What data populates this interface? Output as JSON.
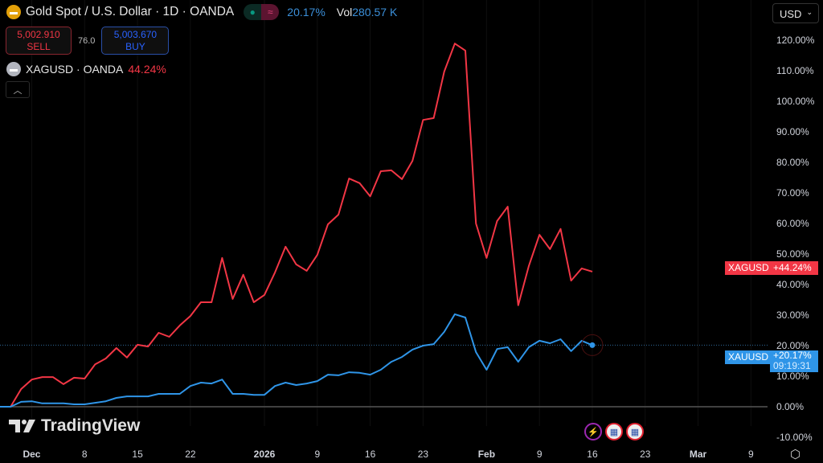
{
  "header": {
    "title": "Gold Spot / U.S. Dollar · 1D · OANDA",
    "change": "20.17%",
    "vol_label": "Vol",
    "vol_value": "280.57 K",
    "status_dot_color": "#089981",
    "wave_icon": "≈"
  },
  "trade": {
    "sell_price": "5,002.910",
    "sell_label": "SELL",
    "spread": "76.0",
    "buy_price": "5,003.670",
    "buy_label": "BUY"
  },
  "compare": {
    "label": "XAGUSD · OANDA",
    "change": "44.24%"
  },
  "currency": "USD",
  "brand": "TradingView",
  "colors": {
    "xauusd": "#2f95e8",
    "xagusd": "#f23645",
    "gold": "#e3a008",
    "silver": "#b2b5be"
  },
  "chart_data": {
    "type": "line",
    "ylim": [
      -10,
      120
    ],
    "yticks": [
      "-10.00%",
      "0.00%",
      "10.00%",
      "20.00%",
      "30.00%",
      "40.00%",
      "50.00%",
      "60.00%",
      "70.00%",
      "80.00%",
      "90.00%",
      "100.00%",
      "110.00%",
      "120.00%"
    ],
    "x_ticks": [
      {
        "label": "Dec",
        "bar": 3
      },
      {
        "label": "8",
        "bar": 8
      },
      {
        "label": "15",
        "bar": 13
      },
      {
        "label": "22",
        "bar": 18
      },
      {
        "label": "2026",
        "bar": 25
      },
      {
        "label": "9",
        "bar": 30
      },
      {
        "label": "16",
        "bar": 35
      },
      {
        "label": "23",
        "bar": 40
      },
      {
        "label": "Feb",
        "bar": 46
      },
      {
        "label": "9",
        "bar": 51
      },
      {
        "label": "16",
        "bar": 56
      },
      {
        "label": "23",
        "bar": 61
      },
      {
        "label": "Mar",
        "bar": 66
      },
      {
        "label": "9",
        "bar": 71
      }
    ],
    "series": [
      {
        "name": "XAGUSD",
        "tag_value": "+44.24%",
        "values": [
          0,
          0,
          5.8,
          8.9,
          9.7,
          9.7,
          7.4,
          9.5,
          9.2,
          13.9,
          15.8,
          19.2,
          16.1,
          20.3,
          19.7,
          24.2,
          22.9,
          26.6,
          29.7,
          34.2,
          34.2,
          48.7,
          35.3,
          43.2,
          34.2,
          36.6,
          44.0,
          52.4,
          46.6,
          44.5,
          49.7,
          59.7,
          62.9,
          74.7,
          73.2,
          68.9,
          77.1,
          77.4,
          74.5,
          80.5,
          93.9,
          94.5,
          109.7,
          118.9,
          116.6,
          60.0,
          48.7,
          60.8,
          65.5,
          33.2,
          46.1,
          56.3,
          51.6,
          58.2,
          41.3,
          45.3,
          44.24
        ]
      },
      {
        "name": "XAUUSD",
        "tag_value": "+20.17%",
        "countdown": "09:19:31",
        "values": [
          0,
          0,
          1.6,
          1.8,
          1.1,
          1.1,
          1.1,
          0.8,
          0.8,
          1.3,
          1.8,
          2.9,
          3.4,
          3.4,
          3.4,
          4.2,
          4.2,
          4.2,
          6.8,
          7.9,
          7.6,
          8.9,
          4.2,
          4.2,
          3.9,
          3.9,
          6.8,
          7.9,
          7.1,
          7.6,
          8.4,
          10.5,
          10.3,
          11.3,
          11.1,
          10.5,
          12.1,
          14.7,
          16.3,
          18.7,
          20.0,
          20.5,
          24.5,
          30.3,
          29.2,
          17.9,
          12.1,
          18.9,
          19.5,
          14.7,
          19.5,
          21.6,
          20.8,
          22.1,
          18.2,
          21.6,
          20.17
        ]
      }
    ]
  }
}
